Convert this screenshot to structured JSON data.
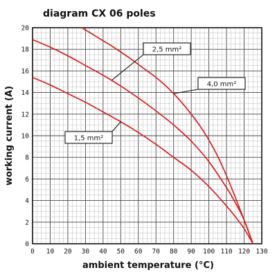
{
  "chart_data": {
    "type": "line",
    "title": "diagram CX 06 poles",
    "xlabel": "ambient temperature (°C)",
    "ylabel": "working current (A)",
    "xlim": [
      0,
      130
    ],
    "ylim": [
      0,
      20
    ],
    "x_ticks": [
      "0",
      "10",
      "20",
      "30",
      "40",
      "50",
      "60",
      "70",
      "80",
      "90",
      "100",
      "110",
      "120",
      "130"
    ],
    "y_ticks": [
      "0",
      "2",
      "4",
      "6",
      "8",
      "10",
      "12",
      "14",
      "16",
      "18",
      "20"
    ],
    "grid": true,
    "series": [
      {
        "name": "2,5 mm²",
        "color": "#d42020",
        "x": [
          28,
          35,
          40,
          45,
          50,
          55,
          60,
          65,
          70,
          75,
          80,
          85,
          90,
          95,
          100,
          105,
          110,
          115,
          120,
          125
        ],
        "y": [
          20.0,
          19.3,
          18.8,
          18.3,
          17.75,
          17.2,
          16.6,
          16.0,
          15.4,
          14.7,
          13.9,
          13.0,
          12.0,
          10.9,
          9.6,
          8.1,
          6.3,
          4.3,
          2.2,
          0.0
        ]
      },
      {
        "name": "4,0 mm²",
        "color": "#d42020",
        "x": [
          0,
          10,
          20,
          30,
          40,
          50,
          60,
          70,
          80,
          90,
          100,
          110,
          115,
          120,
          125
        ],
        "y": [
          18.9,
          18.2,
          17.4,
          16.5,
          15.6,
          14.6,
          13.5,
          12.3,
          11.0,
          9.5,
          7.6,
          5.2,
          3.8,
          2.2,
          0.0
        ]
      },
      {
        "name": "1,5 mm²",
        "color": "#d42020",
        "x": [
          0,
          10,
          20,
          30,
          40,
          50,
          60,
          70,
          80,
          90,
          100,
          110,
          115,
          120,
          125
        ],
        "y": [
          15.4,
          14.7,
          13.9,
          13.1,
          12.2,
          11.3,
          10.3,
          9.2,
          8.0,
          6.8,
          5.3,
          3.5,
          2.5,
          1.4,
          0.0
        ]
      }
    ],
    "annotations": [
      {
        "text": "2,5 mm²",
        "series": 0
      },
      {
        "text": "4,0 mm²",
        "series": 1
      },
      {
        "text": "1,5 mm²",
        "series": 2
      }
    ]
  }
}
